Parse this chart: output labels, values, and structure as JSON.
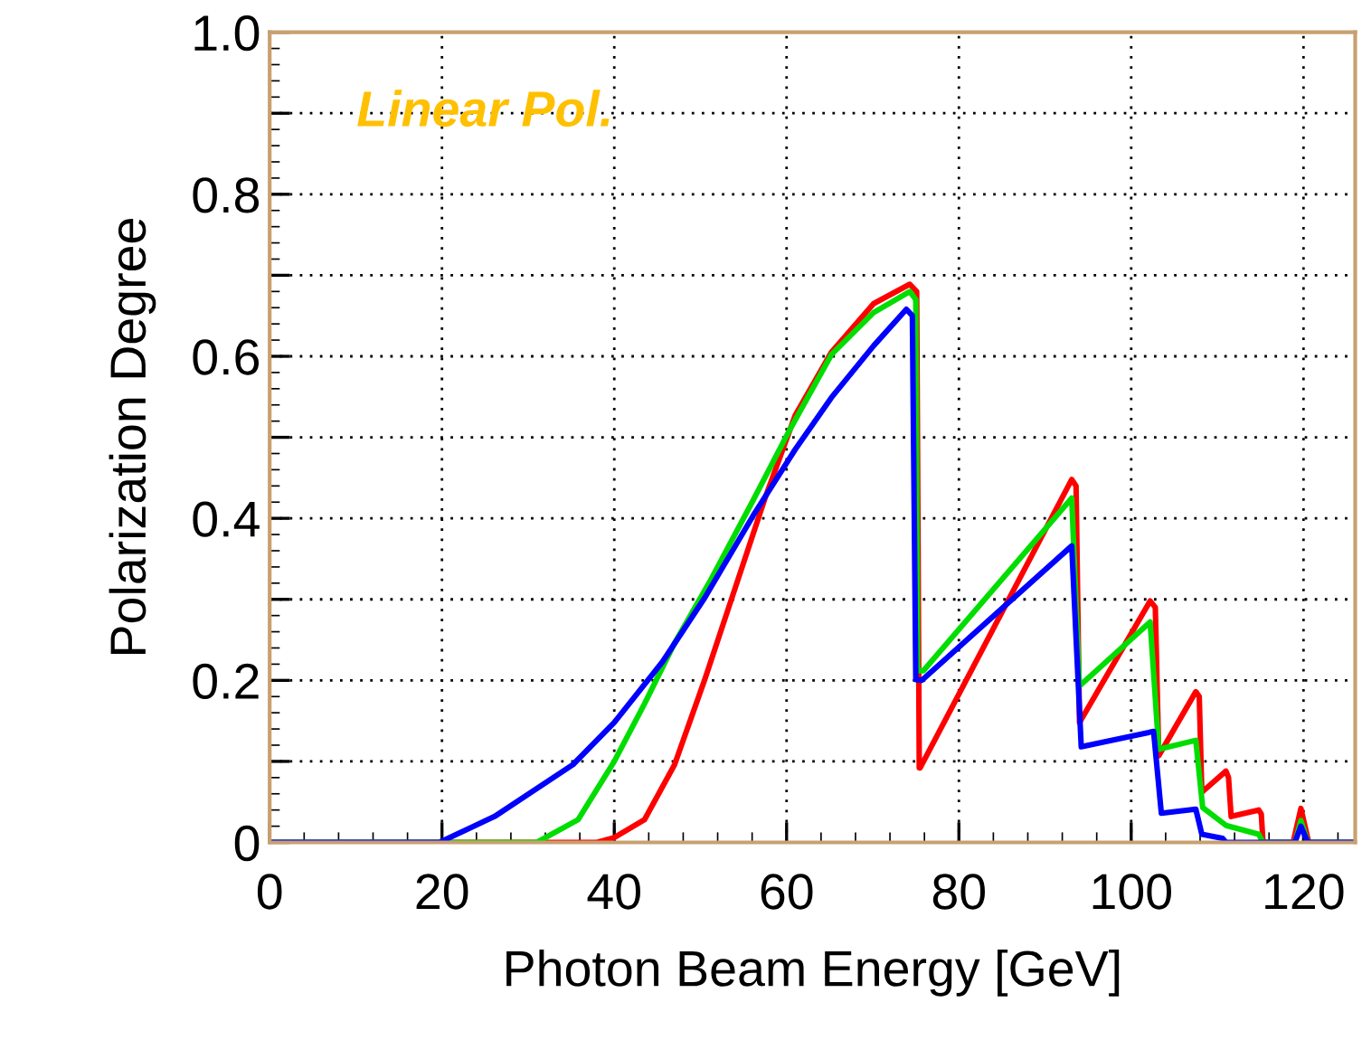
{
  "chart_data": {
    "type": "line",
    "xlabel": "Photon Beam Energy [GeV]",
    "ylabel": "Polarization Degree",
    "annotations": [
      "Linear Pol."
    ],
    "xlim": [
      0,
      126
    ],
    "xticks": [
      0,
      20,
      40,
      60,
      80,
      100,
      120
    ],
    "ylim": [
      0,
      1.0
    ],
    "yticks": [
      0,
      {
        "value": 0.1,
        "label": null
      },
      0.2,
      {
        "value": 0.3,
        "label": null
      },
      0.4,
      {
        "value": 0.5,
        "label": null
      },
      0.6,
      {
        "value": 0.7,
        "label": null
      },
      0.8,
      {
        "value": 0.9,
        "label": null
      },
      {
        "value": 1.0,
        "label": "1.0"
      }
    ],
    "grid": true,
    "marker": "none",
    "line_style": "solid",
    "series": [
      {
        "color": "#ff0000",
        "x": [
          0,
          38,
          40,
          43.5,
          47,
          50.5,
          54,
          57.5,
          61,
          65.2,
          70.1,
          74.3,
          75.1,
          75.4,
          75.5,
          93.1,
          93.6,
          94.0,
          102.2,
          102.8,
          103.2,
          107.5,
          107.9,
          108.2,
          111,
          111.3,
          111.6,
          114.8,
          115.1,
          115.3,
          118.8,
          119.7,
          120.6,
          126
        ],
        "values": [
          0,
          0,
          0.006,
          0.028,
          0.096,
          0.201,
          0.313,
          0.425,
          0.527,
          0.605,
          0.665,
          0.689,
          0.68,
          0.092,
          0.092,
          0.448,
          0.44,
          0.148,
          0.298,
          0.29,
          0.107,
          0.186,
          0.18,
          0.062,
          0.088,
          0.08,
          0.032,
          0.04,
          0.035,
          0,
          0,
          0.042,
          0,
          0
        ]
      },
      {
        "color": "#00dd00",
        "x": [
          0,
          31,
          35.8,
          40,
          43.5,
          47,
          51.2,
          56.1,
          60.3,
          65.2,
          70.1,
          74.3,
          75.0,
          75.2,
          75.9,
          93.1,
          94.0,
          102.2,
          103.2,
          107.5,
          108.3,
          111,
          114.8,
          115.3,
          119,
          119.7,
          120.5,
          126
        ],
        "values": [
          0,
          0,
          0.028,
          0.1,
          0.171,
          0.246,
          0.324,
          0.422,
          0.508,
          0.602,
          0.654,
          0.68,
          0.67,
          0.212,
          0.212,
          0.425,
          0.193,
          0.272,
          0.115,
          0.126,
          0.043,
          0.021,
          0.01,
          0,
          0,
          0.027,
          0,
          0
        ]
      },
      {
        "color": "#0000ff",
        "x": [
          0,
          19.7,
          26.1,
          35.2,
          40,
          45.6,
          50.5,
          56.1,
          61,
          65.2,
          70.1,
          73.9,
          74.6,
          75.0,
          75.7,
          93.1,
          94.2,
          102.6,
          103.5,
          107.5,
          108.2,
          110.6,
          111,
          119,
          119.7,
          120.5,
          126
        ],
        "values": [
          0,
          0,
          0.032,
          0.096,
          0.148,
          0.223,
          0.302,
          0.403,
          0.485,
          0.549,
          0.613,
          0.658,
          0.65,
          0.201,
          0.2,
          0.366,
          0.118,
          0.137,
          0.036,
          0.041,
          0.01,
          0.005,
          0,
          0,
          0.02,
          0,
          0
        ]
      }
    ]
  }
}
